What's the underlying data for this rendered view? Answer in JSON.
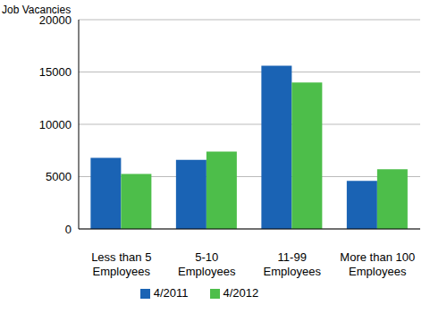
{
  "chart_data": {
    "type": "bar",
    "y_label": "Job Vacancies",
    "categories": [
      "Less than 5 Employees",
      "5-10 Employees",
      "11-99 Employees",
      "More than 100 Employees"
    ],
    "series": [
      {
        "name": "4/2011",
        "color": "#1a63b4",
        "values": [
          6800,
          6600,
          15600,
          4600
        ]
      },
      {
        "name": "4/2012",
        "color": "#4dbe4a",
        "values": [
          5250,
          7400,
          14000,
          5700
        ]
      }
    ],
    "ylim": [
      0,
      20000
    ],
    "yticks": [
      0,
      5000,
      10000,
      15000,
      20000
    ],
    "grid": true,
    "legend": "bottom"
  }
}
